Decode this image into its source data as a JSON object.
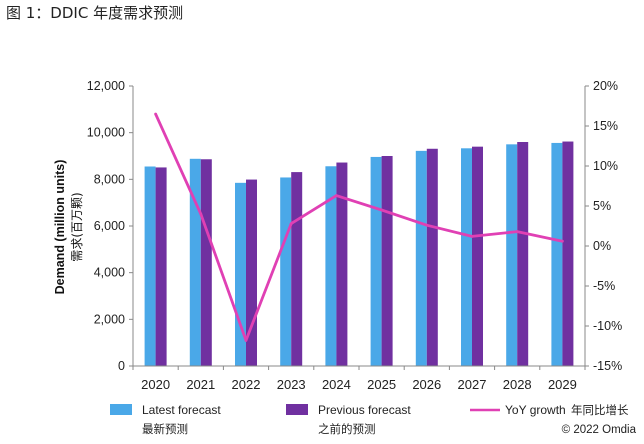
{
  "title": "图 1：DDIC 年度需求预测",
  "copyright": "© 2022 Omdia",
  "chart_data": {
    "type": "bar",
    "title": "图 1：DDIC 年度需求预测",
    "categories": [
      "2020",
      "2021",
      "2022",
      "2023",
      "2024",
      "2025",
      "2026",
      "2027",
      "2028",
      "2029"
    ],
    "series": [
      {
        "name": "Latest forecast",
        "name_cn": "最新预测",
        "type": "bar",
        "axis": "left",
        "color": "#4aa8e8",
        "values": [
          8550,
          8880,
          7850,
          8080,
          8560,
          8960,
          9220,
          9330,
          9500,
          9560
        ]
      },
      {
        "name": "Previous forecast",
        "name_cn": "之前的预测",
        "type": "bar",
        "axis": "left",
        "color": "#7030a0",
        "values": [
          8510,
          8860,
          7990,
          8310,
          8720,
          9000,
          9310,
          9400,
          9600,
          9620
        ]
      },
      {
        "name": "YoY growth",
        "name_cn": "年同比增长",
        "type": "line",
        "axis": "right",
        "unit": "%",
        "color": "#e040b4",
        "values": [
          16.5,
          4.0,
          -11.8,
          2.8,
          6.3,
          4.5,
          2.6,
          1.2,
          1.8,
          0.6
        ]
      }
    ],
    "ylabel": "Demand (million units)",
    "ylabel_cn": "需求(百万颗)",
    "ylim": [
      0,
      12000
    ],
    "yticks": [
      "0",
      "2,000",
      "4,000",
      "6,000",
      "8,000",
      "10,000",
      "12,000"
    ],
    "y2lim": [
      -15,
      20
    ],
    "y2ticks": [
      "-15%",
      "-10%",
      "-5%",
      "0%",
      "5%",
      "10%",
      "15%",
      "20%"
    ],
    "grid": false,
    "legend": "bottom"
  }
}
